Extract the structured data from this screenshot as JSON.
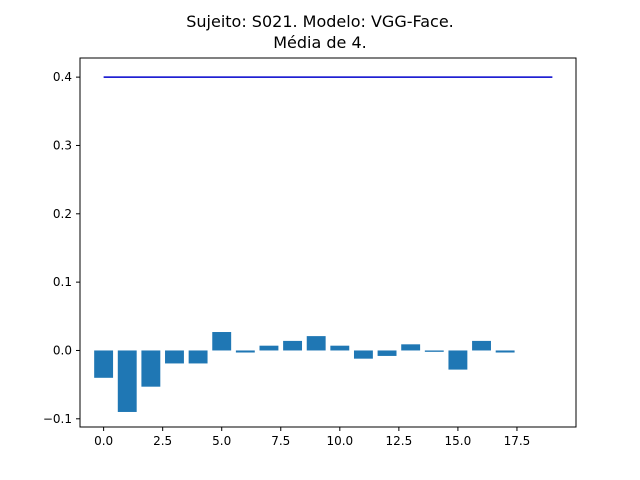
{
  "chart_data": {
    "type": "bar",
    "title_line1": "Sujeito: S021. Modelo: VGG-Face.",
    "title_line2": "Média de 4.",
    "xlim": [
      -1.0,
      20.0
    ],
    "ylim": [
      -0.112,
      0.428
    ],
    "xticks": [
      0.0,
      2.5,
      5.0,
      7.5,
      10.0,
      12.5,
      15.0,
      17.5
    ],
    "xtick_labels": [
      "0.0",
      "2.5",
      "5.0",
      "7.5",
      "10.0",
      "12.5",
      "15.0",
      "17.5"
    ],
    "yticks": [
      -0.1,
      0.0,
      0.1,
      0.2,
      0.3,
      0.4
    ],
    "ytick_labels": [
      "−0.1",
      "0.0",
      "0.1",
      "0.2",
      "0.3",
      "0.4"
    ],
    "bar_color": "#1f77b4",
    "line_color": "#0000cc",
    "x": [
      0,
      1,
      2,
      3,
      4,
      5,
      6,
      7,
      8,
      9,
      10,
      11,
      12,
      13,
      14,
      15,
      16,
      17
    ],
    "values": [
      -0.04,
      -0.09,
      -0.053,
      -0.019,
      -0.019,
      0.027,
      -0.003,
      0.007,
      0.014,
      0.021,
      0.007,
      -0.012,
      -0.008,
      0.009,
      -0.002,
      -0.028,
      0.014,
      -0.003
    ],
    "line": {
      "x": [
        0,
        19
      ],
      "y": [
        0.4,
        0.4
      ]
    }
  }
}
